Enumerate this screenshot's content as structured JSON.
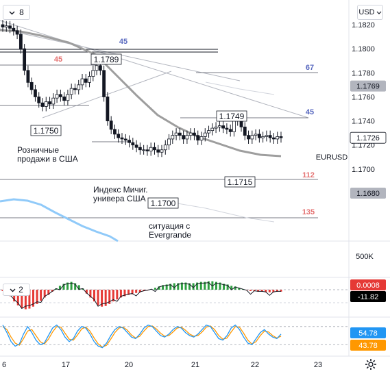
{
  "toolbar": {
    "interval": "8",
    "currency": "USD",
    "indicator_pane_count": "2"
  },
  "colors": {
    "up": "#26a69a",
    "down": "#ef5350",
    "candle": "#131722",
    "ma_gray": "#9e9e9e",
    "ma_blue": "#90caf9",
    "blue_level": "#5b6bc0",
    "red_level": "#e57373",
    "macd_pos": "#2e9e41",
    "macd_neg": "#e53935",
    "stoch_k": "#2196f3",
    "stoch_d": "#ff9800"
  },
  "chart_data": [
    {
      "type": "candlestick",
      "symbol": "EURUSD",
      "y_axis": {
        "min": 1.166,
        "max": 1.1835,
        "ticks": [
          "1.1820",
          "1.1800",
          "1.1780",
          "1.1760",
          "1.1740",
          "1.1720",
          "1.1700",
          "1.1680"
        ]
      },
      "x_axis": {
        "ticks": [
          "6",
          "17",
          "20",
          "21",
          "22",
          "23"
        ]
      },
      "price_badges": [
        {
          "text": "1.1769",
          "value": 1.1769,
          "style": "gray"
        },
        {
          "text": "1.1726",
          "value": 1.1726,
          "style": "white"
        },
        {
          "text": "1.1680",
          "value": 1.168,
          "style": "gray"
        }
      ],
      "symbol_label": "EURUSD",
      "level_labels": [
        {
          "text": "45",
          "color": "blue"
        },
        {
          "text": "45",
          "color": "red"
        },
        {
          "text": "67",
          "color": "blue"
        },
        {
          "text": "45",
          "color": "blue"
        },
        {
          "text": "112",
          "color": "red"
        },
        {
          "text": "135",
          "color": "red"
        }
      ],
      "price_callouts": [
        "1.1789",
        "1.1750",
        "1.1749",
        "1.1715",
        "1.1700"
      ],
      "annotations": [
        [
          "Розничные",
          "продажи в США"
        ],
        [
          "Индекс Мичиг.",
          "универа США"
        ],
        [
          "ситуация с",
          "Evergrande"
        ]
      ],
      "close_series": [
        1.1818,
        1.1819,
        1.1817,
        1.1815,
        1.1812,
        1.18,
        1.1782,
        1.1772,
        1.1766,
        1.176,
        1.1755,
        1.1752,
        1.1756,
        1.1754,
        1.1759,
        1.1762,
        1.176,
        1.1757,
        1.1762,
        1.1767,
        1.1766,
        1.177,
        1.1775,
        1.1772,
        1.1777,
        1.1782,
        1.1786,
        1.1782,
        1.176,
        1.174,
        1.1733,
        1.1729,
        1.1726,
        1.1725,
        1.1724,
        1.1722,
        1.172,
        1.1718,
        1.1716,
        1.1716,
        1.1715,
        1.1718,
        1.1716,
        1.1714,
        1.1716,
        1.172,
        1.1725,
        1.1728,
        1.173,
        1.1728,
        1.1725,
        1.1728,
        1.173,
        1.1728,
        1.1724,
        1.1727,
        1.173,
        1.1732,
        1.1734,
        1.1735,
        1.1736,
        1.1734,
        1.1733,
        1.1731,
        1.174,
        1.1744,
        1.1735,
        1.1728,
        1.1725,
        1.1728,
        1.1729,
        1.1726,
        1.1727,
        1.1728,
        1.1726,
        1.1725,
        1.1727,
        1.1726
      ]
    },
    {
      "type": "volume",
      "y_axis": {
        "ticks": [
          "500K"
        ]
      }
    },
    {
      "type": "macd",
      "value_badges": [
        {
          "text": "0.0008",
          "color": "red"
        },
        {
          "text": "-11.82",
          "color": "black"
        }
      ],
      "histogram": [
        -2,
        -5,
        -10,
        -18,
        -24,
        -28,
        -30,
        -29,
        -26,
        -22,
        -17,
        -12,
        -8,
        -3,
        2,
        6,
        9,
        11,
        12,
        10,
        7,
        2,
        -6,
        -12,
        -18,
        -24,
        -26,
        -25,
        -22,
        -18,
        -15,
        -12,
        -10,
        -8,
        -7,
        -5,
        -4,
        -2,
        -1,
        1,
        3,
        5,
        7,
        8,
        9,
        10,
        10,
        11,
        11,
        10,
        10,
        11,
        12,
        12,
        13,
        13,
        12,
        11,
        9,
        8,
        6,
        5,
        3,
        1,
        -1,
        -2,
        -2,
        -3,
        -3,
        -4,
        -4,
        -4,
        -3,
        -3
      ]
    },
    {
      "type": "stochastic",
      "value_badges": [
        {
          "text": "54.78",
          "color": "blue"
        },
        {
          "text": "43.78",
          "color": "orange"
        }
      ],
      "k": [
        85,
        60,
        30,
        15,
        22,
        55,
        80,
        60,
        35,
        20,
        25,
        50,
        75,
        85,
        70,
        45,
        30,
        40,
        65,
        80,
        75,
        55,
        30,
        15,
        10,
        25,
        50,
        70,
        80,
        75,
        60,
        45,
        40,
        55,
        75,
        85,
        80,
        65,
        50,
        45,
        55,
        70,
        80,
        75,
        60,
        50,
        45,
        55,
        70,
        85,
        80,
        60,
        40,
        35,
        50,
        75,
        85,
        70,
        45,
        25,
        20,
        40,
        60,
        70,
        55,
        45,
        40,
        55
      ],
      "d": [
        80,
        70,
        45,
        25,
        18,
        40,
        65,
        70,
        50,
        30,
        22,
        38,
        62,
        80,
        78,
        58,
        38,
        35,
        52,
        72,
        78,
        65,
        42,
        22,
        12,
        18,
        38,
        60,
        75,
        78,
        68,
        52,
        42,
        48,
        65,
        80,
        82,
        72,
        58,
        48,
        50,
        62,
        75,
        78,
        68,
        55,
        48,
        50,
        62,
        78,
        82,
        70,
        50,
        38,
        42,
        62,
        80,
        78,
        58,
        35,
        22,
        30,
        50,
        65,
        62,
        50,
        42,
        48
      ]
    }
  ]
}
